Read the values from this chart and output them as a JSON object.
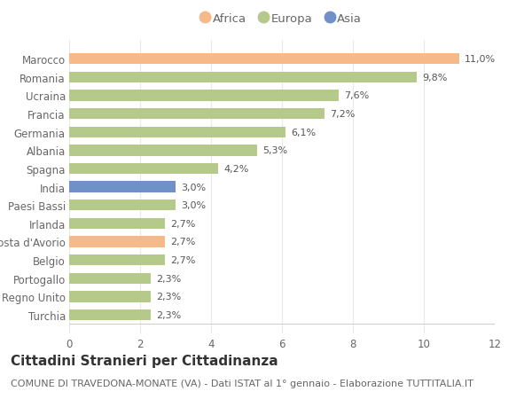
{
  "countries": [
    "Turchia",
    "Regno Unito",
    "Portogallo",
    "Belgio",
    "Costa d'Avorio",
    "Irlanda",
    "Paesi Bassi",
    "India",
    "Spagna",
    "Albania",
    "Germania",
    "Francia",
    "Ucraina",
    "Romania",
    "Marocco"
  ],
  "values": [
    2.3,
    2.3,
    2.3,
    2.7,
    2.7,
    2.7,
    3.0,
    3.0,
    4.2,
    5.3,
    6.1,
    7.2,
    7.6,
    9.8,
    11.0
  ],
  "labels": [
    "2,3%",
    "2,3%",
    "2,3%",
    "2,7%",
    "2,7%",
    "2,7%",
    "3,0%",
    "3,0%",
    "4,2%",
    "5,3%",
    "6,1%",
    "7,2%",
    "7,6%",
    "9,8%",
    "11,0%"
  ],
  "colors": [
    "#b5c98a",
    "#b5c98a",
    "#b5c98a",
    "#b5c98a",
    "#f5b98a",
    "#b5c98a",
    "#b5c98a",
    "#7090c8",
    "#b5c98a",
    "#b5c98a",
    "#b5c98a",
    "#b5c98a",
    "#b5c98a",
    "#b5c98a",
    "#f5b98a"
  ],
  "color_africa": "#f5b98a",
  "color_europa": "#b5c98a",
  "color_asia": "#7090c8",
  "legend_labels": [
    "Africa",
    "Europa",
    "Asia"
  ],
  "title": "Cittadini Stranieri per Cittadinanza",
  "subtitle": "COMUNE DI TRAVEDONA-MONATE (VA) - Dati ISTAT al 1° gennaio - Elaborazione TUTTITALIA.IT",
  "xlim": [
    0,
    12
  ],
  "xticks": [
    0,
    2,
    4,
    6,
    8,
    10,
    12
  ],
  "background_color": "#ffffff",
  "title_fontsize": 11,
  "subtitle_fontsize": 8,
  "label_fontsize": 8,
  "tick_fontsize": 8.5,
  "bar_height": 0.6
}
